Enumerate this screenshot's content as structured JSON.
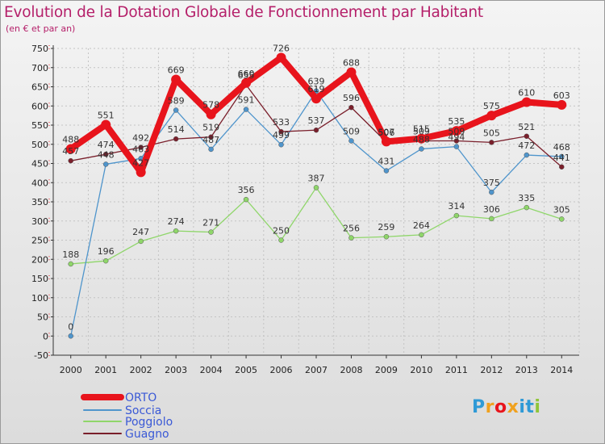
{
  "chart_data": {
    "type": "line",
    "title": "Evolution de la Dotation Globale de Fonctionnement par Habitant",
    "subtitle": "(en € et par an)",
    "xlabel": "",
    "ylabel": "",
    "x": [
      "2000",
      "2001",
      "2002",
      "2003",
      "2004",
      "2005",
      "2006",
      "2007",
      "2008",
      "2009",
      "2010",
      "2011",
      "2012",
      "2013",
      "2014"
    ],
    "ylim": [
      -50,
      750
    ],
    "yticks": [
      -50,
      0,
      50,
      100,
      150,
      200,
      250,
      300,
      350,
      400,
      450,
      500,
      550,
      600,
      650,
      700,
      750
    ],
    "grid": true,
    "legend_position": "bottom-left",
    "series": [
      {
        "name": "ORTO",
        "color": "#e8141c",
        "text_color": "#3a59d6",
        "values": [
          488,
          551,
          427,
          669,
          578,
          660,
          726,
          619,
          688,
          507,
          515,
          535,
          575,
          610,
          603
        ],
        "labels": [
          "488",
          "551",
          "427",
          "669",
          "578",
          "660",
          "726",
          "619",
          "688",
          "507",
          "515",
          "535",
          "575",
          "610",
          "603"
        ]
      },
      {
        "name": "Soccia",
        "color": "#4f95cc",
        "text_color": "#3a59d6",
        "values": [
          0,
          448,
          463,
          589,
          487,
          591,
          499,
          639,
          509,
          431,
          488,
          494,
          375,
          472,
          468
        ],
        "labels": [
          "0",
          "448",
          "463",
          "589",
          "487",
          "591",
          "499",
          "639",
          "509",
          "431",
          "488",
          "494",
          "375",
          "472",
          "468"
        ]
      },
      {
        "name": "Poggiolo",
        "color": "#8fd66a",
        "text_color": "#3a59d6",
        "values": [
          188,
          196,
          247,
          274,
          271,
          356,
          250,
          387,
          256,
          259,
          264,
          314,
          306,
          335,
          305
        ],
        "labels": [
          "188",
          "196",
          "247",
          "274",
          "271",
          "356",
          "250",
          "387",
          "256",
          "259",
          "264",
          "314",
          "306",
          "335",
          "305"
        ]
      },
      {
        "name": "Guagno",
        "color": "#7a1f2b",
        "text_color": "#3a59d6",
        "values": [
          457,
          474,
          492,
          514,
          519,
          655,
          533,
          537,
          596,
          506,
          509,
          509,
          505,
          521,
          441
        ],
        "labels": [
          "457",
          "474",
          "492",
          "514",
          "519",
          "655",
          "533",
          "537",
          "596",
          "506",
          "509",
          "509",
          "505",
          "521",
          "441"
        ]
      }
    ]
  },
  "logo": {
    "letters": [
      "P",
      "r",
      "o",
      "x",
      "i",
      "t",
      "i"
    ],
    "colors": [
      "#2f9ad6",
      "#f0a11e",
      "#e8141c",
      "#f0a11e",
      "#2f9ad6",
      "#2f9ad6",
      "#8fc53a"
    ]
  }
}
